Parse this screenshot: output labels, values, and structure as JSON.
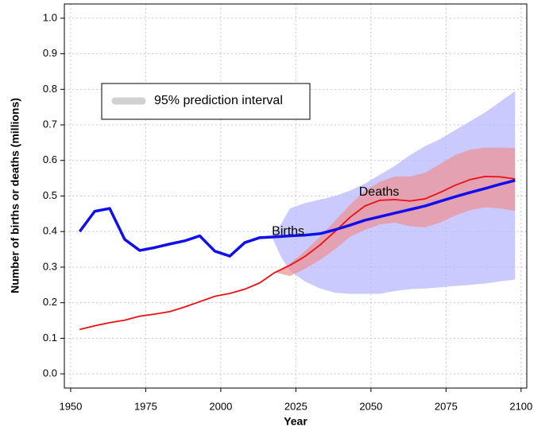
{
  "chart_data": {
    "type": "line",
    "x_label": "Year",
    "y_label": "Number of births or deaths (millions)",
    "xlim": [
      1947.9,
      2101.9
    ],
    "ylim": [
      -0.04,
      1.04
    ],
    "xticks": [
      1950,
      1975,
      2000,
      2025,
      2050,
      2075,
      2100
    ],
    "yticks": [
      {
        "value": 0,
        "label": "0.0"
      },
      0.1,
      0.2,
      0.3,
      0.4,
      0.5,
      0.6,
      0.7,
      0.8,
      0.9,
      {
        "value": 1,
        "label": "1.0"
      }
    ],
    "grid": true,
    "legend_position": "upper left",
    "series": [
      {
        "name": "Births",
        "color": "#1010ee",
        "x": [
          1953,
          1958,
          1963,
          1968,
          1973,
          1978,
          1983,
          1988,
          1993,
          1998,
          2003,
          2008,
          2013,
          2018,
          2023,
          2028,
          2033,
          2038,
          2043,
          2048,
          2053,
          2058,
          2063,
          2068,
          2073,
          2078,
          2083,
          2088,
          2093,
          2098
        ],
        "values": [
          0.4,
          0.457,
          0.465,
          0.378,
          0.347,
          0.355,
          0.365,
          0.374,
          0.388,
          0.345,
          0.331,
          0.369,
          0.383,
          0.385,
          0.388,
          0.39,
          0.394,
          0.405,
          0.418,
          0.432,
          0.442,
          0.452,
          0.462,
          0.472,
          0.485,
          0.498,
          0.51,
          0.521,
          0.533,
          0.544
        ],
        "label_at": [
          2017,
          0.4
        ]
      },
      {
        "name": "Deaths",
        "color": "#ee1010",
        "x": [
          1953,
          1958,
          1963,
          1968,
          1973,
          1978,
          1983,
          1988,
          1993,
          1998,
          2003,
          2008,
          2013,
          2018,
          2023,
          2028,
          2033,
          2038,
          2043,
          2048,
          2053,
          2058,
          2063,
          2068,
          2073,
          2078,
          2083,
          2088,
          2093,
          2098
        ],
        "values": [
          0.125,
          0.135,
          0.144,
          0.151,
          0.162,
          0.168,
          0.175,
          0.188,
          0.203,
          0.218,
          0.226,
          0.238,
          0.256,
          0.285,
          0.305,
          0.33,
          0.362,
          0.4,
          0.44,
          0.472,
          0.488,
          0.49,
          0.486,
          0.492,
          0.51,
          0.53,
          0.546,
          0.555,
          0.554,
          0.548
        ],
        "label_at": [
          2046,
          0.51
        ]
      }
    ],
    "interval_label": "95% prediction interval",
    "interval_legend_color": "#d0d0d0",
    "intervals": [
      {
        "color": "#b4b4ff",
        "x": [
          2017,
          2020,
          2023,
          2028,
          2033,
          2038,
          2043,
          2048,
          2053,
          2058,
          2063,
          2068,
          2073,
          2078,
          2083,
          2088,
          2093,
          2098
        ],
        "lower": [
          0.385,
          0.33,
          0.29,
          0.26,
          0.24,
          0.228,
          0.225,
          0.225,
          0.225,
          0.233,
          0.238,
          0.24,
          0.243,
          0.247,
          0.25,
          0.254,
          0.26,
          0.265
        ],
        "upper": [
          0.385,
          0.42,
          0.465,
          0.48,
          0.49,
          0.5,
          0.515,
          0.535,
          0.56,
          0.585,
          0.615,
          0.64,
          0.66,
          0.685,
          0.71,
          0.735,
          0.765,
          0.795
        ]
      },
      {
        "color": "#f09090",
        "x": [
          2018,
          2023,
          2028,
          2033,
          2038,
          2043,
          2048,
          2053,
          2058,
          2063,
          2068,
          2073,
          2078,
          2083,
          2088,
          2093,
          2098
        ],
        "lower": [
          0.285,
          0.275,
          0.295,
          0.32,
          0.35,
          0.385,
          0.405,
          0.42,
          0.425,
          0.415,
          0.412,
          0.425,
          0.445,
          0.46,
          0.468,
          0.465,
          0.458
        ],
        "upper": [
          0.285,
          0.31,
          0.345,
          0.385,
          0.43,
          0.475,
          0.515,
          0.54,
          0.555,
          0.555,
          0.565,
          0.59,
          0.615,
          0.63,
          0.636,
          0.636,
          0.635
        ]
      }
    ]
  }
}
